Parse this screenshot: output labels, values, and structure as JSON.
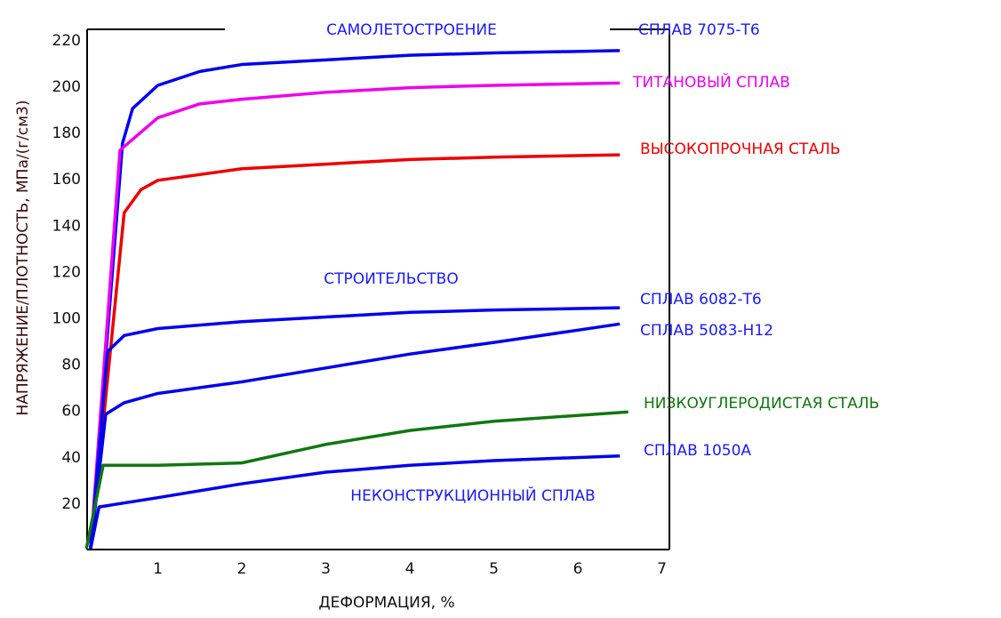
{
  "chart_data": {
    "type": "line",
    "xlabel": "ДЕФОРМАЦИЯ, %",
    "ylabel": "НАПРЯЖЕНИЕ/ПЛОТНОСТЬ, МПа/(г/см3)",
    "xlim": [
      0,
      7
    ],
    "ylim": [
      0,
      220
    ],
    "xticks": [
      "1",
      "2",
      "3",
      "4",
      "5",
      "6",
      "7"
    ],
    "yticks": [
      "20",
      "40",
      "60",
      "80",
      "100",
      "120",
      "140",
      "160",
      "180",
      "200",
      "220"
    ],
    "grid": false,
    "annotations": [
      {
        "text": "САМОЛЕТОСТРОЕНИЕ",
        "color": "#1a1aff"
      },
      {
        "text": "СТРОИТЕЛЬСТВО",
        "color": "#1a1aff"
      },
      {
        "text": "НЕКОНСТРУКЦИОННЫЙ СПЛАВ",
        "color": "#1a1aff"
      }
    ],
    "series": [
      {
        "name": "СПЛАВ 7075-Т6",
        "color": "#0000ee",
        "x": [
          0.2,
          0.58,
          0.7,
          1,
          1.5,
          2,
          3,
          4,
          5,
          6.5
        ],
        "y": [
          0,
          175,
          190,
          200,
          206,
          209,
          211,
          213,
          214,
          215
        ]
      },
      {
        "name": "ТИТАНОВЫЙ СПЛАВ",
        "color": "#ee00ee",
        "x": [
          0.2,
          0.55,
          1,
          1.5,
          2,
          3,
          4,
          5,
          6.5
        ],
        "y": [
          0,
          172,
          186,
          192,
          194,
          197,
          199,
          200,
          201
        ]
      },
      {
        "name": "ВЫСОКОПРОЧНАЯ СТАЛЬ",
        "color": "#ee0000",
        "x": [
          0.2,
          0.6,
          0.8,
          1,
          2,
          3,
          4,
          5,
          6.5
        ],
        "y": [
          0,
          145,
          155,
          159,
          164,
          166,
          168,
          169,
          170
        ]
      },
      {
        "name": "СПЛАВ 6082-Т6",
        "color": "#0000ee",
        "x": [
          0.2,
          0.4,
          0.6,
          1,
          2,
          3,
          4,
          5,
          6.5
        ],
        "y": [
          0,
          85,
          92,
          95,
          98,
          100,
          102,
          103,
          104
        ]
      },
      {
        "name": "СПЛАВ 5083-Н12",
        "color": "#0000ee",
        "x": [
          0.2,
          0.38,
          0.6,
          1,
          2,
          3,
          4,
          5,
          6.5
        ],
        "y": [
          0,
          58,
          63,
          67,
          72,
          78,
          84,
          89,
          97
        ]
      },
      {
        "name": "НИЗКОУГЛЕРОДИСТАЯ СТАЛЬ",
        "color": "#117711",
        "x": [
          0.15,
          0.35,
          1,
          2,
          3,
          4,
          5,
          6.6
        ],
        "y": [
          0,
          36,
          36,
          37,
          45,
          51,
          55,
          59
        ]
      },
      {
        "name": "СПЛАВ 1050А",
        "color": "#0000ee",
        "x": [
          0.2,
          0.3,
          1,
          2,
          3,
          4,
          5,
          6.5
        ],
        "y": [
          0,
          18,
          22,
          28,
          33,
          36,
          38,
          40
        ]
      }
    ]
  }
}
